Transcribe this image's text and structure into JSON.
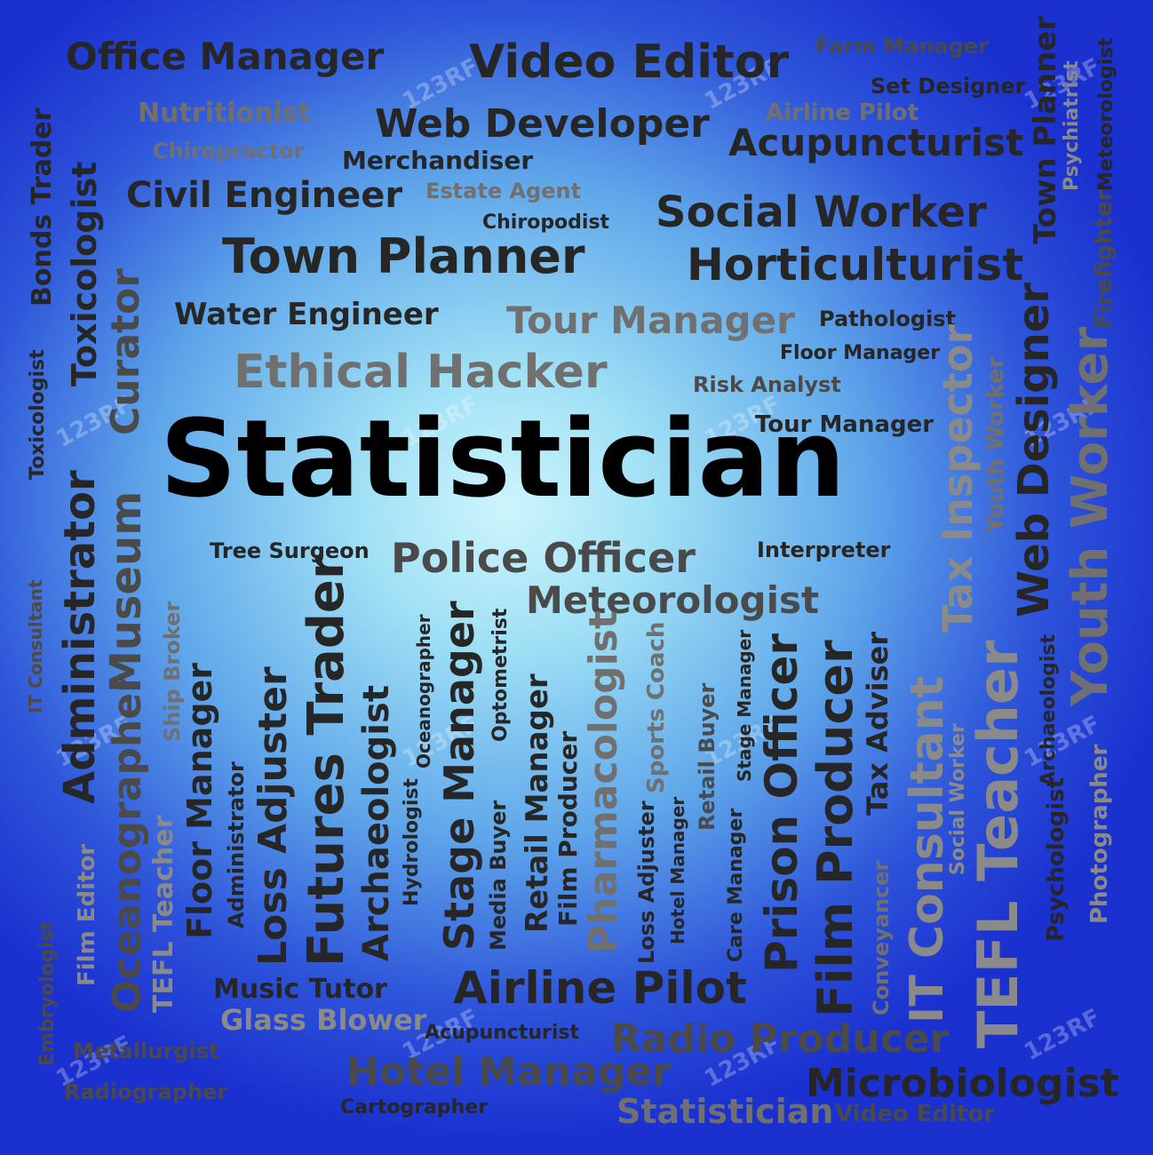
{
  "words": {
    "office_manager": "Office Manager",
    "video_editor": "Video Editor",
    "farm_manager": "Farm Manager",
    "set_designer": "Set Designer",
    "nutritionist": "Nutritionist",
    "web_developer": "Web Developer",
    "airline_pilot_top": "Airline Pilot",
    "chiropractor": "Chiropractor",
    "merchandiser": "Merchandiser",
    "acupuncturist_top": "Acupuncturist",
    "civil_engineer": "Civil Engineer",
    "estate_agent": "Estate Agent",
    "chiropodist": "Chiropodist",
    "social_worker": "Social Worker",
    "town_planner": "Town Planner",
    "horticulturist": "Horticulturist",
    "water_engineer": "Water Engineer",
    "tour_manager_1": "Tour Manager",
    "pathologist": "Pathologist",
    "floor_manager_top": "Floor Manager",
    "ethical_hacker": "Ethical Hacker",
    "risk_analyst": "Risk Analyst",
    "tour_manager_2": "Tour Manager",
    "statistician_main": "Statistician",
    "tree_surgeon": "Tree Surgeon",
    "police_officer": "Police Officer",
    "interpreter": "Interpreter",
    "meteorologist": "Meteorologist",
    "music_tutor": "Music Tutor",
    "airline_pilot_bottom": "Airline Pilot",
    "glass_blower": "Glass Blower",
    "acupuncturist_bottom": "Acupuncturist",
    "radio_producer": "Radio Producer",
    "metallurgist": "Metallurgist",
    "hotel_manager_bottom": "Hotel Manager",
    "microbiologist": "Microbiologist",
    "radiographer": "Radiographer",
    "cartographer": "Cartographer",
    "statistician_bottom": "Statistician",
    "video_editor_bottom": "Video Editor",
    "v_bonds_trader": "Bonds Trader",
    "v_toxicologist_1": "Toxicologist",
    "v_toxicologist_2": "Toxicologist",
    "v_curator": "Curator",
    "v_administrator_1": "Administrator",
    "v_museum": "Museum",
    "v_it_consultant_small": "IT Consultant",
    "v_oceanographer_1": "Oceanographer",
    "v_ship_broker": "Ship Broker",
    "v_floor_manager": "Floor Manager",
    "v_administrator_2": "Administrator",
    "v_loss_adjuster_1": "Loss Adjuster",
    "v_futures_trader": "Futures Trader",
    "v_archaeologist_1": "Archaeologist",
    "v_hydrologist": "Hydrologist",
    "v_oceanographer_2": "Oceanographer",
    "v_stage_manager_1": "Stage Manager",
    "v_optometrist": "Optometrist",
    "v_media_buyer": "Media Buyer",
    "v_retail_manager": "Retail Manager",
    "v_film_producer_1": "Film Producer",
    "v_pharmacologist": "Pharmacologist",
    "v_sports_coach": "Sports Coach",
    "v_loss_adjuster_2": "Loss Adjuster",
    "v_hotel_manager": "Hotel Manager",
    "v_retail_buyer": "Retail Buyer",
    "v_stage_manager_2": "Stage Manager",
    "v_care_manager": "Care Manager",
    "v_prison_officer": "Prison Officer",
    "v_film_producer_2": "Film Producer",
    "v_tax_adviser": "Tax Adviser",
    "v_conveyancer": "Conveyancer",
    "v_it_consultant_big": "IT Consultant",
    "v_tax_inspector": "Tax Inspector",
    "v_youth_worker_small": "Youth Worker",
    "v_social_worker": "Social Worker",
    "v_tefl_teacher_big": "TEFL Teacher",
    "v_web_designer": "Web Designer",
    "v_archaeologist_2": "Archaeologist",
    "v_psychologist": "Psychologist",
    "v_youth_worker_big": "Youth Worker",
    "v_photographer": "Photographer",
    "v_town_planner": "Town Planner",
    "v_psychiatrist": "Psychiatrist",
    "v_meteorologist": "Meteorologist",
    "v_firefighter": "Firefighter",
    "v_film_editor": "Film Editor",
    "v_tefl_teacher_small": "TEFL Teacher",
    "v_embryologist": "Embryologist"
  },
  "watermark": "123RF"
}
